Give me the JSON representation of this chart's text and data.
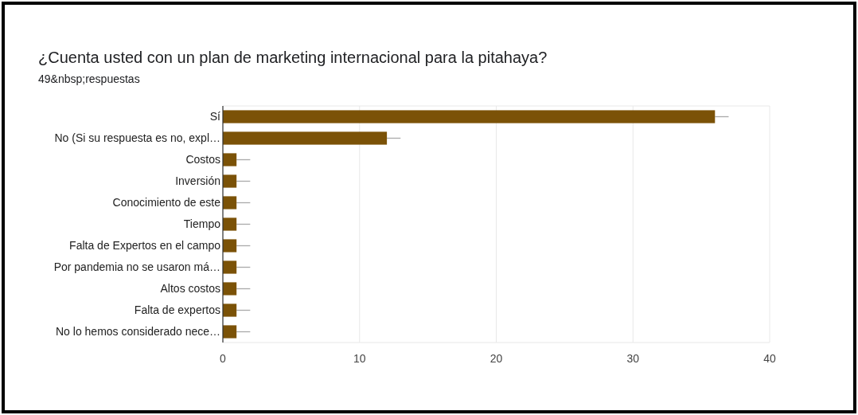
{
  "chart_data": {
    "type": "bar",
    "orientation": "horizontal",
    "title": "¿Cuenta usted con un plan de marketing internacional para la pitahaya?",
    "subtitle": "49&nbsp;respuestas",
    "categories": [
      "Sí",
      "No (Si su respuesta es no, expl…",
      "Costos",
      "Inversión",
      "Conocimiento de este",
      "Tiempo",
      "Falta de Expertos en el campo",
      "Por pandemia no se usaron má…",
      "Altos costos",
      "Falta de expertos",
      "No lo hemos considerado nece…"
    ],
    "values": [
      36,
      12,
      1,
      1,
      1,
      1,
      1,
      1,
      1,
      1,
      1
    ],
    "errors": [
      [
        36,
        37
      ],
      [
        12,
        13
      ],
      [
        1,
        2
      ],
      [
        1,
        2
      ],
      [
        1,
        2
      ],
      [
        1,
        2
      ],
      [
        1,
        2
      ],
      [
        1,
        2
      ],
      [
        1,
        2
      ],
      [
        1,
        2
      ],
      [
        1,
        2
      ]
    ],
    "color": "#7b5207",
    "xlim": [
      0,
      40
    ],
    "xticks": [
      0,
      10,
      20,
      30,
      40
    ],
    "grid": "x"
  }
}
